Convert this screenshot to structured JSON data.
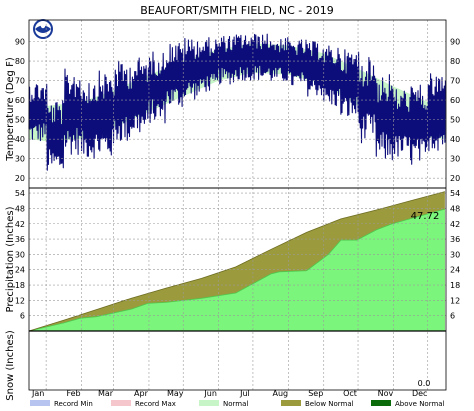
{
  "title": "BEAUFORT/SMITH FIELD, NC - 2019",
  "colors": {
    "temp_line": "#0c0c7a",
    "normal": "#c8f5c8",
    "precip_fill": "#7cf57c",
    "below_normal": "#9b9a3c",
    "above_normal": "#0b6b0b",
    "record_min": "#b8c4f0",
    "record_max": "#f5c6cc"
  },
  "chart_data": [
    {
      "type": "line",
      "panel": "temperature",
      "ylabel": "Temperature (Deg F)",
      "ylim": [
        15,
        101
      ],
      "yticks": [
        20,
        30,
        40,
        50,
        60,
        70,
        80,
        90
      ],
      "grid": true,
      "normal_band": {
        "months": [
          "Jan",
          "Feb",
          "Mar",
          "Apr",
          "May",
          "Jun",
          "Jul",
          "Aug",
          "Sep",
          "Oct",
          "Nov",
          "Dec"
        ],
        "low": [
          39,
          40,
          46,
          54,
          62,
          70,
          74,
          73,
          68,
          57,
          47,
          41
        ],
        "high": [
          57,
          59,
          65,
          73,
          80,
          86,
          89,
          88,
          84,
          76,
          67,
          59
        ]
      },
      "series": [
        {
          "series_role": "daily-high-low-approx",
          "month_values": {
            "Jan": [
              [
                38,
                70
              ],
              [
                22,
                60
              ]
            ],
            "Feb": [
              [
                32,
                76
              ],
              [
                30,
                72
              ]
            ],
            "Mar": [
              [
                30,
                75
              ],
              [
                38,
                80
              ]
            ],
            "Apr": [
              [
                42,
                82
              ],
              [
                48,
                85
              ]
            ],
            "May": [
              [
                56,
                90
              ],
              [
                60,
                92
              ]
            ],
            "Jun": [
              [
                64,
                92
              ],
              [
                68,
                93
              ]
            ],
            "Jul": [
              [
                70,
                94
              ],
              [
                70,
                94
              ]
            ],
            "Aug": [
              [
                69,
                92
              ],
              [
                66,
                91
              ]
            ],
            "Sep": [
              [
                62,
                90
              ],
              [
                56,
                88
              ]
            ],
            "Oct": [
              [
                50,
                86
              ],
              [
                38,
                82
              ]
            ],
            "Nov": [
              [
                28,
                74
              ],
              [
                30,
                66
              ]
            ],
            "Dec": [
              [
                26,
                68
              ],
              [
                34,
                74
              ]
            ]
          }
        }
      ]
    },
    {
      "type": "area",
      "panel": "precipitation",
      "ylabel": "Precipitation (Inches)",
      "ylim": [
        0,
        56
      ],
      "yticks": [
        6,
        12,
        18,
        24,
        30,
        36,
        42,
        48,
        54
      ],
      "grid": true,
      "total_label": "47.72",
      "series": [
        {
          "name": "Normal",
          "x": [
            "Jan 1",
            "Feb 1",
            "Mar 1",
            "Apr 1",
            "May 1",
            "Jun 1",
            "Jul 1",
            "Aug 1",
            "Sep 1",
            "Oct 1",
            "Nov 1",
            "Dec 1",
            "Dec 31"
          ],
          "values": [
            0,
            4.3,
            8.4,
            12.9,
            16.8,
            20.6,
            25.1,
            32.0,
            38.6,
            43.9,
            47.4,
            51.0,
            54.6
          ]
        },
        {
          "name": "Observed",
          "x": [
            "Jan 1",
            "Feb 1",
            "Feb 15",
            "Mar 1",
            "Apr 1",
            "Apr 15",
            "May 1",
            "Jun 1",
            "Jul 1",
            "Aug 1",
            "Aug 8",
            "Sep 1",
            "Sep 20",
            "Oct 1",
            "Oct 15",
            "Nov 1",
            "Nov 15",
            "Dec 1",
            "Dec 31"
          ],
          "values": [
            0,
            3.2,
            5.0,
            5.6,
            8.6,
            10.8,
            11.2,
            12.8,
            14.9,
            22.4,
            23.2,
            23.6,
            30.0,
            35.6,
            35.6,
            39.6,
            42.0,
            44.0,
            47.72
          ]
        }
      ]
    },
    {
      "type": "area",
      "panel": "snow",
      "ylabel": "Snow (Inches)",
      "total_label": "0.0",
      "x_tick_labels": [
        "Jan",
        "Feb",
        "Mar",
        "Apr",
        "May",
        "Jun",
        "Jul",
        "Aug",
        "Sep",
        "Oct",
        "Nov",
        "Dec"
      ]
    }
  ],
  "legend": [
    {
      "label": "Record Min",
      "color": "#b8c4f0"
    },
    {
      "label": "Record Max",
      "color": "#f5c6cc"
    },
    {
      "label": "Normal",
      "color": "#c8f5c8"
    },
    {
      "label": "Below Normal",
      "color": "#9b9a3c"
    },
    {
      "label": "Above Normal",
      "color": "#0b6b0b"
    }
  ]
}
